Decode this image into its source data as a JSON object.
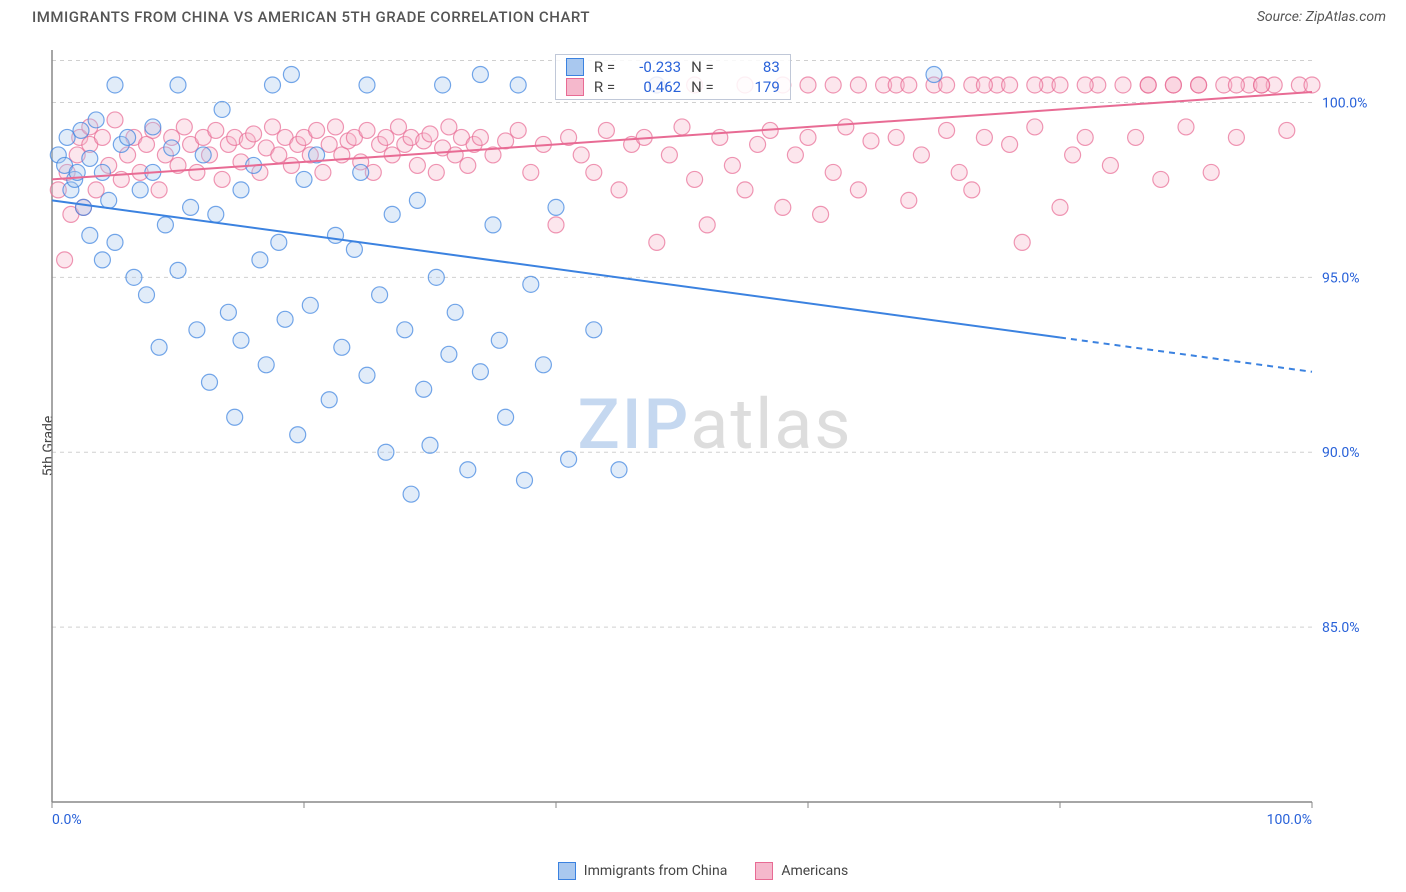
{
  "header": {
    "title": "IMMIGRANTS FROM CHINA VS AMERICAN 5TH GRADE CORRELATION CHART",
    "source": "Source: ZipAtlas.com"
  },
  "watermark": {
    "part1": "ZIP",
    "part2": "atlas"
  },
  "ylabel": "5th Grade",
  "chart": {
    "type": "scatter",
    "background_color": "#ffffff",
    "grid_color": "#d0d0d0",
    "axis_color": "#888888",
    "tick_label_color": "#2962d9",
    "xlim": [
      0,
      100
    ],
    "ylim": [
      80,
      101.5
    ],
    "x_ticks": [
      0,
      20,
      40,
      60,
      80,
      100
    ],
    "x_tick_labels": [
      "0.0%",
      "",
      "",
      "",
      "",
      "100.0%"
    ],
    "y_ticks": [
      85,
      90,
      95,
      100
    ],
    "y_tick_labels": [
      "85.0%",
      "90.0%",
      "95.0%",
      "100.0%"
    ],
    "marker_radius": 8,
    "marker_stroke_width": 1.2,
    "marker_fill_opacity": 0.35,
    "line_width": 2
  },
  "series": [
    {
      "key": "china",
      "label": "Immigrants from China",
      "color": "#3b82e0",
      "fill": "#a9c8ef",
      "R": "-0.233",
      "N": "83",
      "trend": {
        "x1": 0,
        "y1": 97.2,
        "x2": 100,
        "y2": 92.3,
        "solid_to_x": 80
      },
      "points": [
        [
          0.5,
          98.5
        ],
        [
          1,
          98.2
        ],
        [
          1.2,
          99.0
        ],
        [
          1.5,
          97.5
        ],
        [
          1.8,
          97.8
        ],
        [
          2,
          98.0
        ],
        [
          2.3,
          99.2
        ],
        [
          2.5,
          97.0
        ],
        [
          3,
          98.4
        ],
        [
          3,
          96.2
        ],
        [
          3.5,
          99.5
        ],
        [
          4,
          95.5
        ],
        [
          4,
          98.0
        ],
        [
          4.5,
          97.2
        ],
        [
          5,
          100.5
        ],
        [
          5,
          96.0
        ],
        [
          5.5,
          98.8
        ],
        [
          6,
          99.0
        ],
        [
          6.5,
          95.0
        ],
        [
          7,
          97.5
        ],
        [
          7.5,
          94.5
        ],
        [
          8,
          98.0
        ],
        [
          8,
          99.3
        ],
        [
          8.5,
          93.0
        ],
        [
          9,
          96.5
        ],
        [
          9.5,
          98.7
        ],
        [
          10,
          95.2
        ],
        [
          10,
          100.5
        ],
        [
          11,
          97.0
        ],
        [
          11.5,
          93.5
        ],
        [
          12,
          98.5
        ],
        [
          12.5,
          92.0
        ],
        [
          13,
          96.8
        ],
        [
          13.5,
          99.8
        ],
        [
          14,
          94.0
        ],
        [
          14.5,
          91.0
        ],
        [
          15,
          97.5
        ],
        [
          15,
          93.2
        ],
        [
          16,
          98.2
        ],
        [
          16.5,
          95.5
        ],
        [
          17,
          92.5
        ],
        [
          17.5,
          100.5
        ],
        [
          18,
          96.0
        ],
        [
          18.5,
          93.8
        ],
        [
          19,
          100.8
        ],
        [
          19.5,
          90.5
        ],
        [
          20,
          97.8
        ],
        [
          20.5,
          94.2
        ],
        [
          21,
          98.5
        ],
        [
          22,
          91.5
        ],
        [
          22.5,
          96.2
        ],
        [
          23,
          93.0
        ],
        [
          24,
          95.8
        ],
        [
          24.5,
          98.0
        ],
        [
          25,
          92.2
        ],
        [
          25,
          100.5
        ],
        [
          26,
          94.5
        ],
        [
          26.5,
          90.0
        ],
        [
          27,
          96.8
        ],
        [
          28,
          93.5
        ],
        [
          28.5,
          88.8
        ],
        [
          29,
          97.2
        ],
        [
          29.5,
          91.8
        ],
        [
          30,
          90.2
        ],
        [
          30.5,
          95.0
        ],
        [
          31,
          100.5
        ],
        [
          31.5,
          92.8
        ],
        [
          32,
          94.0
        ],
        [
          33,
          89.5
        ],
        [
          34,
          100.8
        ],
        [
          34,
          92.3
        ],
        [
          35,
          96.5
        ],
        [
          35.5,
          93.2
        ],
        [
          36,
          91.0
        ],
        [
          37,
          100.5
        ],
        [
          37.5,
          89.2
        ],
        [
          38,
          94.8
        ],
        [
          39,
          92.5
        ],
        [
          40,
          97.0
        ],
        [
          41,
          89.8
        ],
        [
          43,
          93.5
        ],
        [
          45,
          89.5
        ],
        [
          48,
          100.5
        ],
        [
          70,
          100.8
        ]
      ]
    },
    {
      "key": "americans",
      "label": "Americans",
      "color": "#e86b94",
      "fill": "#f5b8cc",
      "R": "0.462",
      "N": "179",
      "trend": {
        "x1": 0,
        "y1": 97.8,
        "x2": 100,
        "y2": 100.3,
        "solid_to_x": 100
      },
      "points": [
        [
          0.5,
          97.5
        ],
        [
          1,
          95.5
        ],
        [
          1.2,
          98.0
        ],
        [
          1.5,
          96.8
        ],
        [
          2,
          98.5
        ],
        [
          2.2,
          99.0
        ],
        [
          2.5,
          97.0
        ],
        [
          3,
          98.8
        ],
        [
          3,
          99.3
        ],
        [
          3.5,
          97.5
        ],
        [
          4,
          99.0
        ],
        [
          4.5,
          98.2
        ],
        [
          5,
          99.5
        ],
        [
          5.5,
          97.8
        ],
        [
          6,
          98.5
        ],
        [
          6.5,
          99.0
        ],
        [
          7,
          98.0
        ],
        [
          7.5,
          98.8
        ],
        [
          8,
          99.2
        ],
        [
          8.5,
          97.5
        ],
        [
          9,
          98.5
        ],
        [
          9.5,
          99.0
        ],
        [
          10,
          98.2
        ],
        [
          10.5,
          99.3
        ],
        [
          11,
          98.8
        ],
        [
          11.5,
          98.0
        ],
        [
          12,
          99.0
        ],
        [
          12.5,
          98.5
        ],
        [
          13,
          99.2
        ],
        [
          13.5,
          97.8
        ],
        [
          14,
          98.8
        ],
        [
          14.5,
          99.0
        ],
        [
          15,
          98.3
        ],
        [
          15.5,
          98.9
        ],
        [
          16,
          99.1
        ],
        [
          16.5,
          98.0
        ],
        [
          17,
          98.7
        ],
        [
          17.5,
          99.3
        ],
        [
          18,
          98.5
        ],
        [
          18.5,
          99.0
        ],
        [
          19,
          98.2
        ],
        [
          19.5,
          98.8
        ],
        [
          20,
          99.0
        ],
        [
          20.5,
          98.5
        ],
        [
          21,
          99.2
        ],
        [
          21.5,
          98.0
        ],
        [
          22,
          98.8
        ],
        [
          22.5,
          99.3
        ],
        [
          23,
          98.5
        ],
        [
          23.5,
          98.9
        ],
        [
          24,
          99.0
        ],
        [
          24.5,
          98.3
        ],
        [
          25,
          99.2
        ],
        [
          25.5,
          98.0
        ],
        [
          26,
          98.8
        ],
        [
          26.5,
          99.0
        ],
        [
          27,
          98.5
        ],
        [
          27.5,
          99.3
        ],
        [
          28,
          98.8
        ],
        [
          28.5,
          99.0
        ],
        [
          29,
          98.2
        ],
        [
          29.5,
          98.9
        ],
        [
          30,
          99.1
        ],
        [
          30.5,
          98.0
        ],
        [
          31,
          98.7
        ],
        [
          31.5,
          99.3
        ],
        [
          32,
          98.5
        ],
        [
          32.5,
          99.0
        ],
        [
          33,
          98.2
        ],
        [
          33.5,
          98.8
        ],
        [
          34,
          99.0
        ],
        [
          35,
          98.5
        ],
        [
          36,
          98.9
        ],
        [
          37,
          99.2
        ],
        [
          38,
          98.0
        ],
        [
          39,
          98.8
        ],
        [
          40,
          96.5
        ],
        [
          41,
          99.0
        ],
        [
          42,
          98.5
        ],
        [
          43,
          98.0
        ],
        [
          44,
          99.2
        ],
        [
          45,
          97.5
        ],
        [
          46,
          98.8
        ],
        [
          47,
          99.0
        ],
        [
          48,
          96.0
        ],
        [
          49,
          98.5
        ],
        [
          50,
          99.3
        ],
        [
          51,
          97.8
        ],
        [
          52,
          96.5
        ],
        [
          53,
          99.0
        ],
        [
          54,
          98.2
        ],
        [
          55,
          97.5
        ],
        [
          56,
          98.8
        ],
        [
          57,
          99.2
        ],
        [
          58,
          97.0
        ],
        [
          59,
          98.5
        ],
        [
          60,
          99.0
        ],
        [
          61,
          96.8
        ],
        [
          62,
          98.0
        ],
        [
          63,
          99.3
        ],
        [
          64,
          97.5
        ],
        [
          65,
          98.9
        ],
        [
          66,
          100.5
        ],
        [
          67,
          99.0
        ],
        [
          68,
          97.2
        ],
        [
          69,
          98.5
        ],
        [
          70,
          100.5
        ],
        [
          71,
          99.2
        ],
        [
          72,
          98.0
        ],
        [
          73,
          97.5
        ],
        [
          74,
          99.0
        ],
        [
          75,
          100.5
        ],
        [
          76,
          98.8
        ],
        [
          77,
          96.0
        ],
        [
          78,
          99.3
        ],
        [
          79,
          100.5
        ],
        [
          80,
          97.0
        ],
        [
          81,
          98.5
        ],
        [
          82,
          99.0
        ],
        [
          83,
          100.5
        ],
        [
          84,
          98.2
        ],
        [
          85,
          100.5
        ],
        [
          86,
          99.0
        ],
        [
          87,
          100.5
        ],
        [
          88,
          97.8
        ],
        [
          89,
          100.5
        ],
        [
          90,
          99.3
        ],
        [
          91,
          100.5
        ],
        [
          92,
          98.0
        ],
        [
          93,
          100.5
        ],
        [
          94,
          99.0
        ],
        [
          95,
          100.5
        ],
        [
          96,
          100.5
        ],
        [
          97,
          100.5
        ],
        [
          98,
          99.2
        ],
        [
          99,
          100.5
        ],
        [
          100,
          100.5
        ],
        [
          62,
          100.5
        ],
        [
          64,
          100.5
        ],
        [
          67,
          100.5
        ],
        [
          55,
          100.5
        ],
        [
          58,
          100.5
        ],
        [
          48,
          100.5
        ],
        [
          51,
          100.5
        ],
        [
          73,
          100.5
        ],
        [
          76,
          100.5
        ],
        [
          80,
          100.5
        ],
        [
          82,
          100.5
        ],
        [
          87,
          100.5
        ],
        [
          89,
          100.5
        ],
        [
          91,
          100.5
        ],
        [
          94,
          100.5
        ],
        [
          96,
          100.5
        ],
        [
          60,
          100.5
        ],
        [
          68,
          100.5
        ],
        [
          71,
          100.5
        ],
        [
          74,
          100.5
        ],
        [
          78,
          100.5
        ]
      ]
    }
  ],
  "bottom_legend": [
    {
      "label": "Immigrants from China",
      "fill": "#a9c8ef",
      "stroke": "#3b82e0"
    },
    {
      "label": "Americans",
      "fill": "#f5b8cc",
      "stroke": "#e86b94"
    }
  ],
  "r_legend_labels": {
    "R": "R =",
    "N": "N ="
  }
}
